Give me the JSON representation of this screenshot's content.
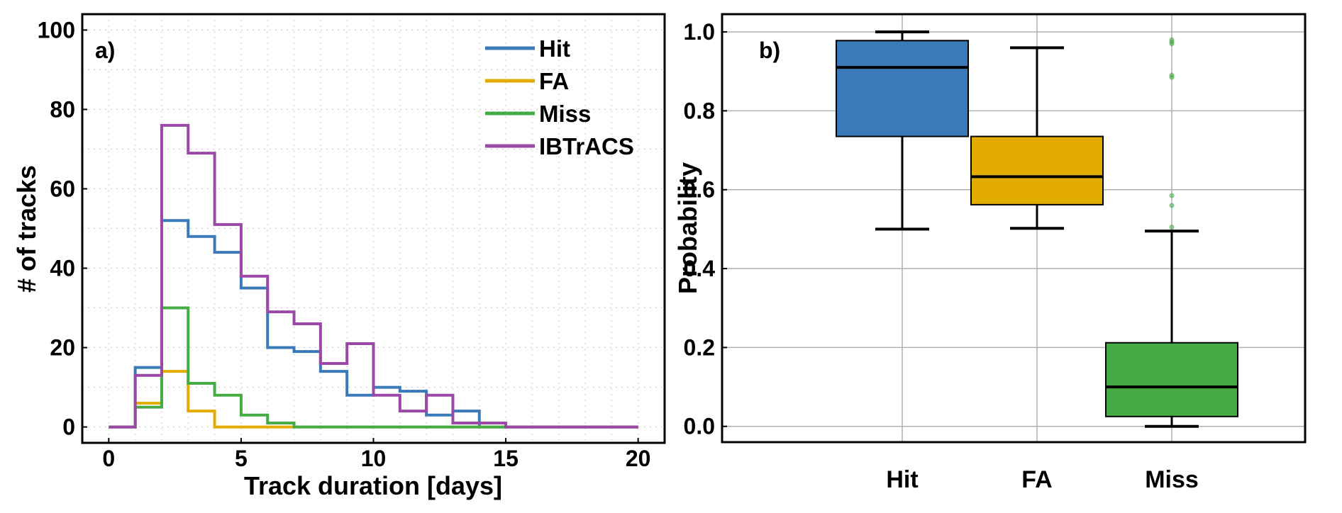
{
  "chart_data": [
    {
      "type": "line",
      "subtype": "step-histogram",
      "panel_label": "a)",
      "xlabel": "Track duration [days]",
      "ylabel": "# of tracks",
      "xlim": [
        -1,
        21
      ],
      "ylim": [
        -4,
        104
      ],
      "xticks": [
        0,
        5,
        10,
        15,
        20
      ],
      "yticks": [
        0,
        20,
        40,
        60,
        80,
        100
      ],
      "grid": "dotted",
      "legend_position": "top-right",
      "bin_edges": [
        0,
        1,
        2,
        3,
        4,
        5,
        6,
        7,
        8,
        9,
        10,
        11,
        12,
        13,
        14,
        15,
        16,
        17,
        18,
        19,
        20
      ],
      "series": [
        {
          "name": "Hit",
          "color": "#3a7ab8",
          "values": [
            0,
            15,
            52,
            48,
            44,
            35,
            20,
            19,
            14,
            8,
            10,
            9,
            3,
            4,
            0,
            0,
            0,
            0,
            0,
            0
          ]
        },
        {
          "name": "FA",
          "color": "#e3ac00",
          "values": [
            0,
            6,
            14,
            4,
            0,
            0,
            0,
            0,
            0,
            0,
            0,
            0,
            0,
            0,
            0,
            0,
            0,
            0,
            0,
            0
          ]
        },
        {
          "name": "Miss",
          "color": "#45ab45",
          "values": [
            0,
            5,
            30,
            11,
            8,
            3,
            1,
            0,
            0,
            0,
            0,
            0,
            0,
            0,
            0,
            0,
            0,
            0,
            0,
            0
          ]
        },
        {
          "name": "IBTrACS",
          "color": "#9a4aa6",
          "values": [
            0,
            13,
            76,
            69,
            51,
            38,
            29,
            26,
            16,
            21,
            8,
            4,
            8,
            1,
            1,
            0,
            0,
            0,
            0,
            0
          ]
        }
      ]
    },
    {
      "type": "box",
      "panel_label": "b)",
      "xlabel": "",
      "ylabel": "Probability",
      "ylim": [
        -0.04,
        1.045
      ],
      "yticks": [
        "0.0",
        "0.2",
        "0.4",
        "0.6",
        "0.8",
        "1.0"
      ],
      "grid": "solid",
      "categories": [
        "Hit",
        "FA",
        "Miss"
      ],
      "boxes": [
        {
          "name": "Hit",
          "color": "#3a7ab8",
          "whisker_low": 0.5,
          "q1": 0.735,
          "median": 0.91,
          "q3": 0.978,
          "whisker_high": 1.0,
          "outliers": []
        },
        {
          "name": "FA",
          "color": "#e3ac00",
          "whisker_low": 0.502,
          "q1": 0.562,
          "median": 0.633,
          "q3": 0.735,
          "whisker_high": 0.96,
          "outliers": []
        },
        {
          "name": "Miss",
          "color": "#45ab45",
          "whisker_low": 0.0,
          "q1": 0.025,
          "median": 0.1,
          "q3": 0.212,
          "whisker_high": 0.495,
          "outliers": [
            0.505,
            0.56,
            0.585,
            0.885,
            0.89,
            0.97,
            0.975,
            0.98
          ]
        }
      ]
    }
  ]
}
